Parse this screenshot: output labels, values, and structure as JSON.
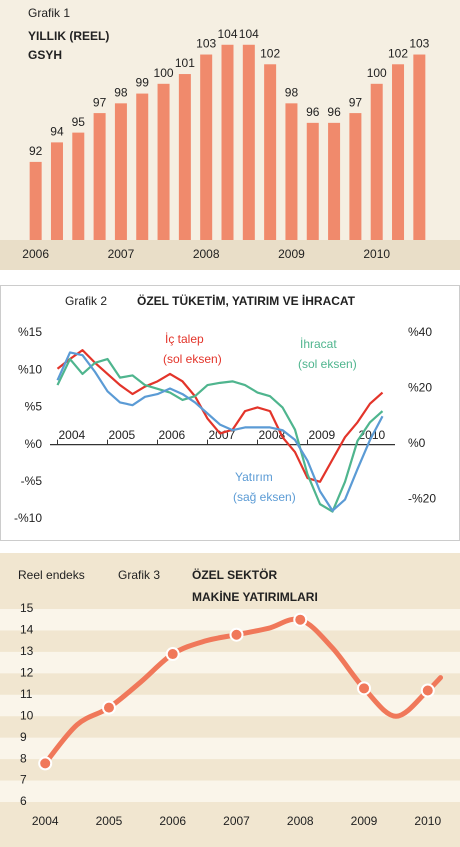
{
  "chart_data": [
    {
      "type": "bar",
      "title": "Grafik 1",
      "subtitle": [
        "YILLIK (REEL)",
        "GSYH"
      ],
      "categories": [
        "2006",
        null,
        null,
        null,
        "2007",
        null,
        null,
        null,
        "2008",
        null,
        null,
        null,
        "2009",
        null,
        null,
        null,
        "2010",
        null,
        null
      ],
      "values": [
        92,
        94,
        95,
        97,
        98,
        99,
        100,
        101,
        103,
        104,
        104,
        102,
        98,
        96,
        96,
        97,
        100,
        102,
        103
      ],
      "color": "#f08a6c",
      "ylim": [
        84,
        105
      ]
    },
    {
      "type": "line",
      "subtitle": "Grafik 2",
      "title": "ÖZEL TÜKETİM, YATIRIM VE İHRACAT",
      "x": [
        2004,
        2004.25,
        2004.5,
        2004.75,
        2005,
        2005.25,
        2005.5,
        2005.75,
        2006,
        2006.25,
        2006.5,
        2006.75,
        2007,
        2007.25,
        2007.5,
        2007.75,
        2008,
        2008.25,
        2008.5,
        2008.75,
        2009,
        2009.25,
        2009.5,
        2009.75,
        2010,
        2010.25,
        2010.5
      ],
      "series": [
        {
          "name": "İç talep",
          "note": "(sol eksen)",
          "color": "#e3342a",
          "values": [
            10.2,
            11.5,
            12.7,
            11.0,
            9.5,
            8.0,
            6.8,
            7.8,
            8.5,
            9.5,
            8.5,
            6.5,
            3.5,
            1.5,
            2.0,
            4.5,
            5.0,
            4.5,
            1.0,
            -1.0,
            -4.5,
            -5.0,
            -2.0,
            1.0,
            3.0,
            5.5,
            7.0
          ]
        },
        {
          "name": "İhracat",
          "note": "(sol eksen)",
          "color": "#4fb58e",
          "values": [
            8.0,
            11.5,
            9.5,
            11.0,
            11.5,
            9.0,
            9.3,
            8.0,
            7.5,
            7.0,
            6.0,
            6.5,
            8.0,
            8.3,
            8.5,
            8.0,
            7.0,
            6.5,
            5.0,
            2.0,
            -4.0,
            -8.0,
            -9.0,
            -5.0,
            0.5,
            3.0,
            4.5
          ]
        },
        {
          "name": "Yatırım",
          "note": "(sağ eksen)",
          "color": "#5b9bd5",
          "axis": "y2",
          "values": [
            23,
            33,
            32,
            26,
            19,
            15,
            14,
            17,
            18,
            20,
            18,
            15,
            11,
            7,
            5,
            6,
            6,
            6,
            5,
            1.5,
            -6,
            -17,
            -24,
            -20,
            -9,
            1.5,
            10
          ]
        }
      ],
      "xlim": [
        2003.85,
        2010.75
      ],
      "xticks": [
        2004,
        2005,
        2006,
        2007,
        2008,
        2009,
        2010
      ],
      "ylim": [
        -10,
        15
      ],
      "yticks": [
        {
          "value": -10,
          "label": "-%10"
        },
        {
          "value": -5,
          "label": "-%5"
        },
        {
          "value": 0,
          "label": "%0"
        },
        {
          "value": 5,
          "label": "%5"
        },
        {
          "value": 10,
          "label": "%10"
        },
        {
          "value": 15,
          "label": "%15"
        }
      ],
      "y2lim": [
        -27,
        40
      ],
      "y2ticks": [
        {
          "value": -20,
          "label": "-%20"
        },
        {
          "value": 0,
          "label": "%0"
        },
        {
          "value": 20,
          "label": "%20"
        },
        {
          "value": 40,
          "label": "%40"
        }
      ]
    },
    {
      "type": "line",
      "ylabel": "Reel endeks",
      "subtitle": "Grafik 3",
      "title": [
        "ÖZEL SEKTÖR",
        "MAKİNE YATIRIMLARI"
      ],
      "x": [
        2004,
        2004.5,
        2005,
        2005.5,
        2006,
        2006.5,
        2007,
        2007.5,
        2008,
        2008.5,
        2009,
        2009.5,
        2010,
        2010.2
      ],
      "values": [
        7.8,
        9.6,
        10.4,
        11.6,
        12.9,
        13.5,
        13.8,
        14.1,
        14.5,
        13.2,
        11.3,
        10.0,
        11.2,
        11.8
      ],
      "color": "#f0785a",
      "xlim": [
        2003.84,
        2010.27
      ],
      "xticks": [
        2004,
        2005,
        2006,
        2007,
        2008,
        2009,
        2010
      ],
      "ylim": [
        6,
        15
      ],
      "yticks": [
        6,
        7,
        8,
        9,
        10,
        11,
        12,
        13,
        14,
        15
      ]
    }
  ]
}
